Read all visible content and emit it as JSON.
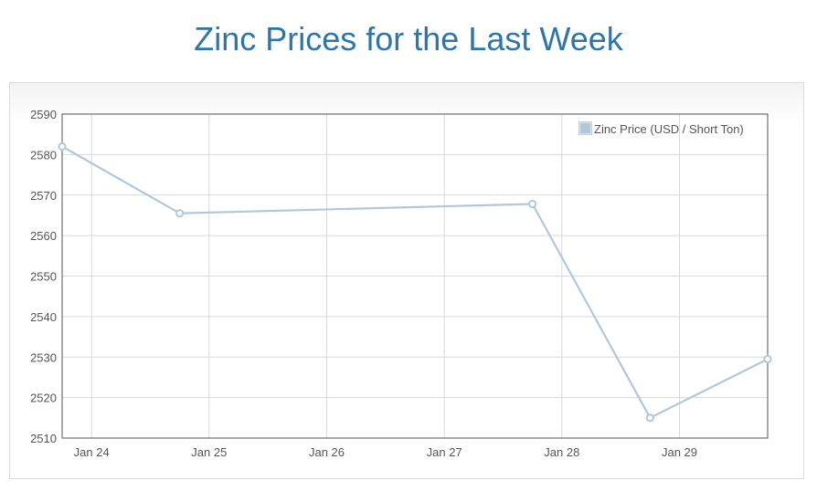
{
  "page": {
    "title": "Zinc Prices for the Last Week"
  },
  "chart_data": {
    "type": "line",
    "title": "Zinc Prices for the Last Week",
    "xlabel": "",
    "ylabel": "",
    "x_ticks": [
      "Jan 24",
      "Jan 25",
      "Jan 26",
      "Jan 27",
      "Jan 28",
      "Jan 29"
    ],
    "y_ticks": [
      2510,
      2520,
      2530,
      2540,
      2550,
      2560,
      2570,
      2580,
      2590
    ],
    "ylim": [
      2510,
      2590
    ],
    "xlim": [
      "2020-01-23T18:00",
      "2020-01-29T18:00"
    ],
    "grid": true,
    "legend_position": "top-right",
    "series": [
      {
        "name": "Zinc Price (USD / Short Ton)",
        "color": "#b0c8dc",
        "points": [
          {
            "x": "2020-01-23T18:00",
            "y": 2582
          },
          {
            "x": "2020-01-24T18:00",
            "y": 2565.5
          },
          {
            "x": "2020-01-27T18:00",
            "y": 2567.8
          },
          {
            "x": "2020-01-28T18:00",
            "y": 2515
          },
          {
            "x": "2020-01-29T18:00",
            "y": 2529.5
          }
        ]
      }
    ]
  }
}
